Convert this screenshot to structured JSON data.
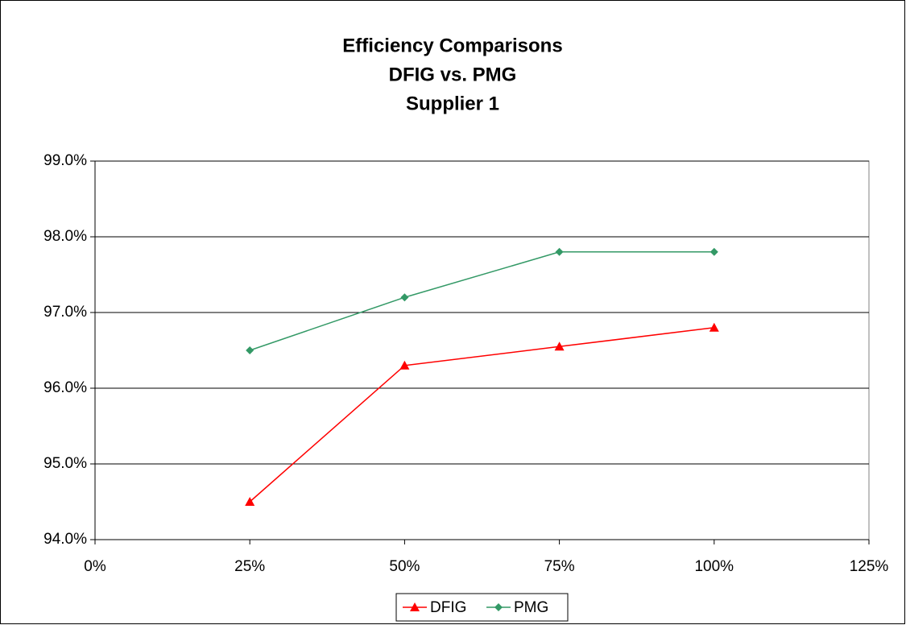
{
  "chart_data": {
    "type": "line",
    "title_lines": [
      "Efficiency Comparisons",
      "DFIG vs. PMG",
      "Supplier 1"
    ],
    "x": [
      25,
      50,
      75,
      100
    ],
    "series": [
      {
        "name": "DFIG",
        "color": "#ff0000",
        "marker": "triangle",
        "values": [
          94.5,
          96.3,
          96.55,
          96.8
        ]
      },
      {
        "name": "PMG",
        "color": "#339966",
        "marker": "diamond",
        "values": [
          96.5,
          97.2,
          97.8,
          97.8
        ]
      }
    ],
    "xlim": [
      0,
      125
    ],
    "xticks": [
      {
        "value": 0,
        "label": "0%"
      },
      {
        "value": 25,
        "label": "25%"
      },
      {
        "value": 50,
        "label": "50%"
      },
      {
        "value": 75,
        "label": "75%"
      },
      {
        "value": 100,
        "label": "100%"
      },
      {
        "value": 125,
        "label": "125%"
      }
    ],
    "ylim": [
      94,
      99
    ],
    "yticks": [
      {
        "value": 94,
        "label": "94.0%"
      },
      {
        "value": 95,
        "label": "95.0%"
      },
      {
        "value": 96,
        "label": "96.0%"
      },
      {
        "value": 97,
        "label": "97.0%"
      },
      {
        "value": 98,
        "label": "98.0%"
      },
      {
        "value": 99,
        "label": "99.0%"
      }
    ],
    "grid": true,
    "legend": "bottom"
  }
}
